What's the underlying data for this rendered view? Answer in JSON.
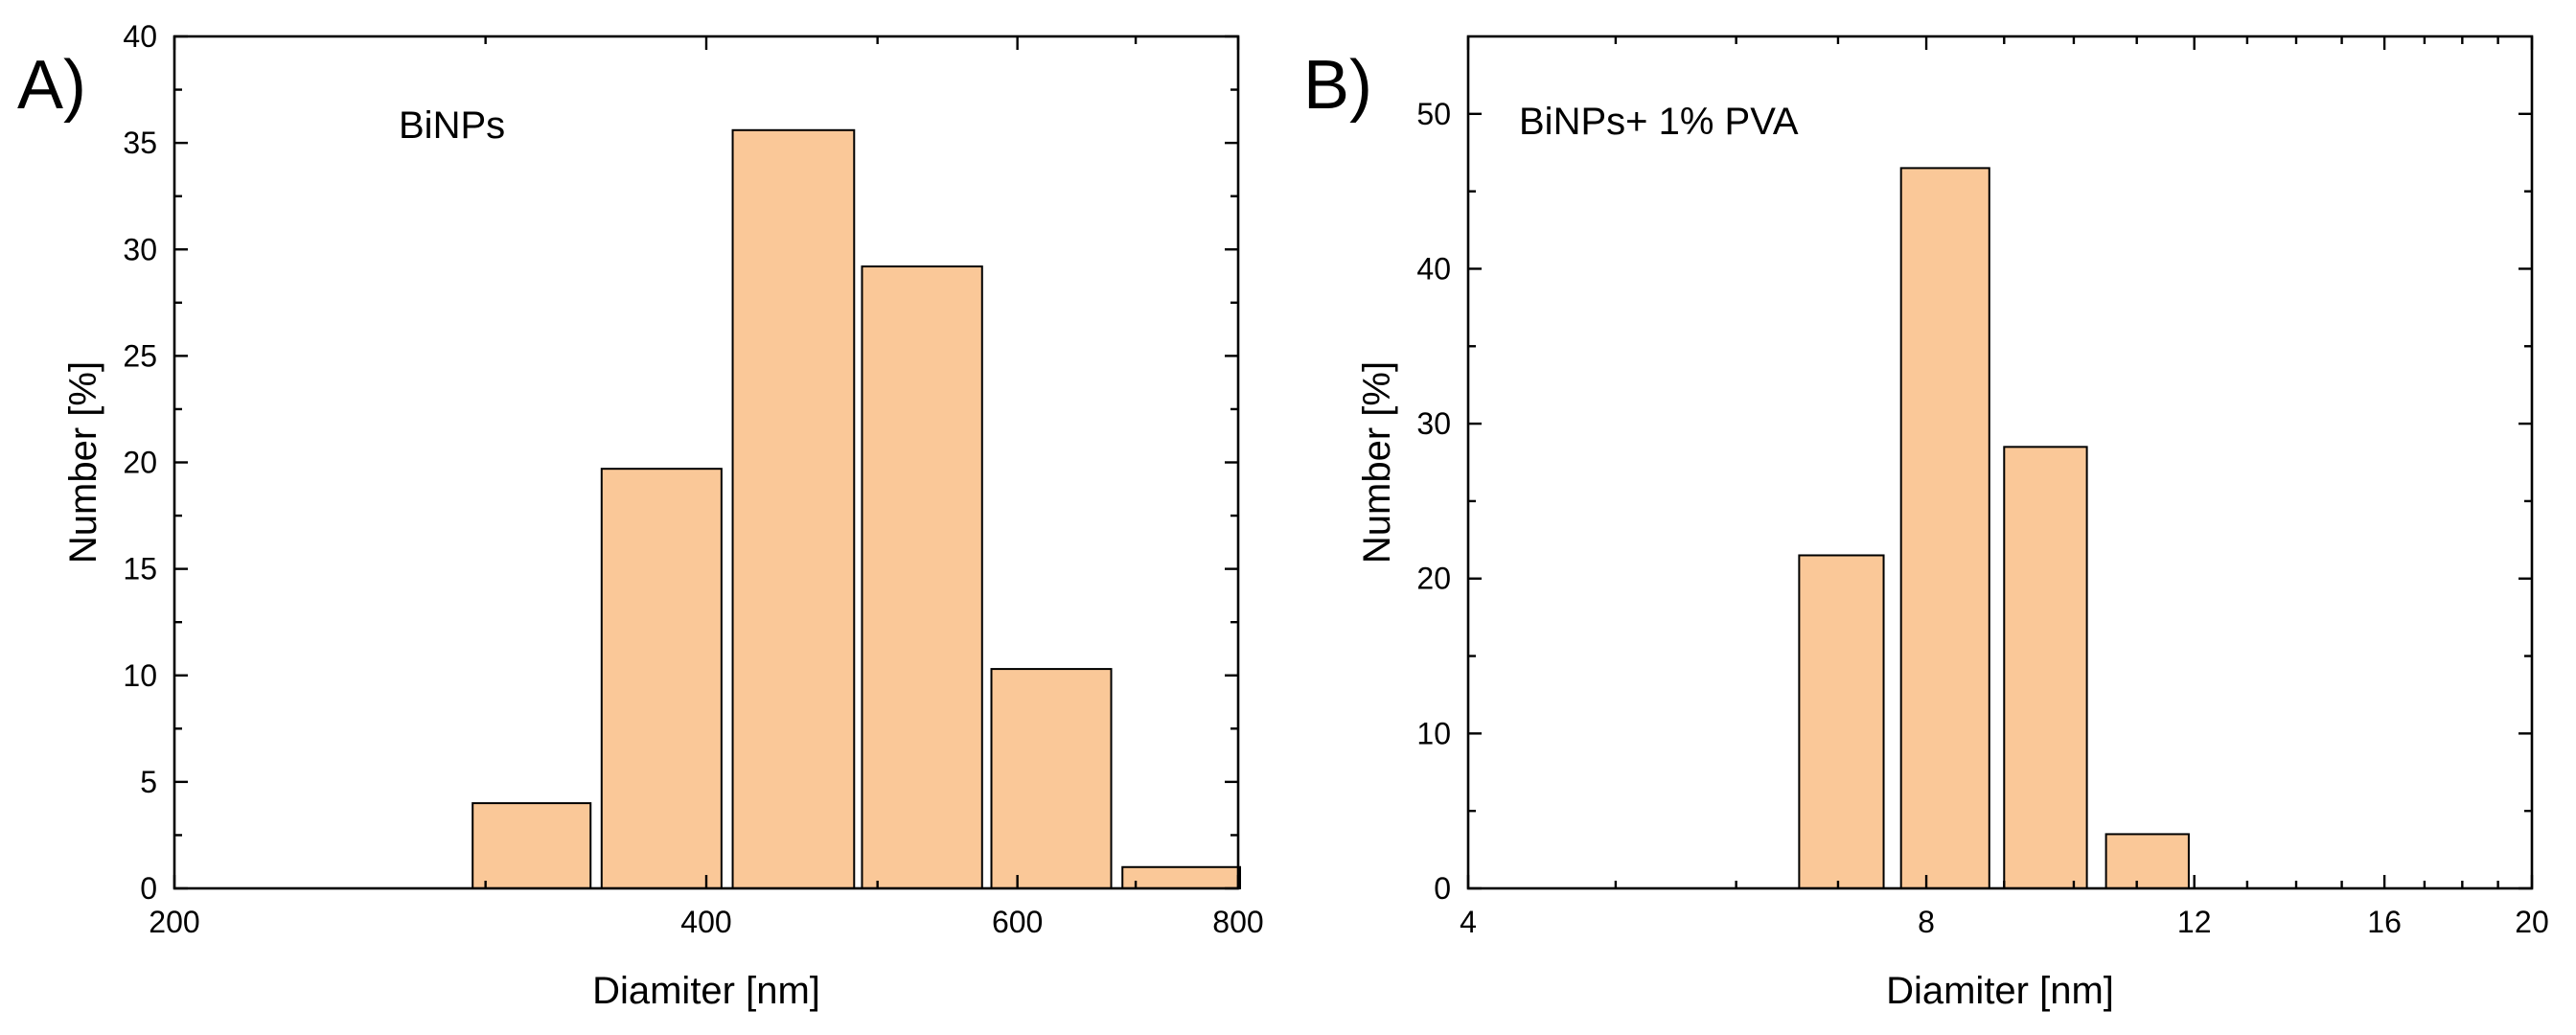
{
  "chart_data": [
    {
      "type": "bar",
      "panel_label": "A)",
      "annotation": "BiNPs",
      "xlabel": "Diamiter [nm]",
      "ylabel": "Number [%]",
      "xscale": "log",
      "xlim": [
        200,
        800
      ],
      "ylim": [
        0,
        40
      ],
      "x_ticks": [
        200,
        400,
        600,
        800
      ],
      "x_minor_ticks": [
        300,
        500,
        700
      ],
      "y_ticks": [
        0,
        5,
        10,
        15,
        20,
        25,
        30,
        35,
        40
      ],
      "bar_color": "#FAC898",
      "bars": [
        {
          "from": 295,
          "to": 344,
          "value": 4.0
        },
        {
          "from": 349,
          "to": 408,
          "value": 19.7
        },
        {
          "from": 414,
          "to": 485,
          "value": 35.6
        },
        {
          "from": 490,
          "to": 573,
          "value": 29.2
        },
        {
          "from": 580,
          "to": 678,
          "value": 10.3
        },
        {
          "from": 688,
          "to": 802,
          "value": 1.0
        }
      ]
    },
    {
      "type": "bar",
      "panel_label": "B)",
      "annotation": "BiNPs+ 1% PVA",
      "xlabel": "Diamiter [nm]",
      "ylabel": "Number [%]",
      "xscale": "log",
      "xlim": [
        4,
        20
      ],
      "ylim": [
        0,
        55
      ],
      "x_ticks": [
        4,
        8,
        12,
        16,
        20
      ],
      "x_minor_ticks": [
        5,
        6,
        7,
        9,
        10,
        11,
        13,
        14,
        15,
        17,
        18,
        19
      ],
      "y_ticks": [
        0,
        10,
        20,
        30,
        40,
        50
      ],
      "bar_color": "#FAC898",
      "bars": [
        {
          "from": 6.6,
          "to": 7.5,
          "value": 21.5
        },
        {
          "from": 7.7,
          "to": 8.8,
          "value": 46.5
        },
        {
          "from": 9.0,
          "to": 10.2,
          "value": 28.5
        },
        {
          "from": 10.5,
          "to": 11.9,
          "value": 3.5
        }
      ]
    }
  ]
}
